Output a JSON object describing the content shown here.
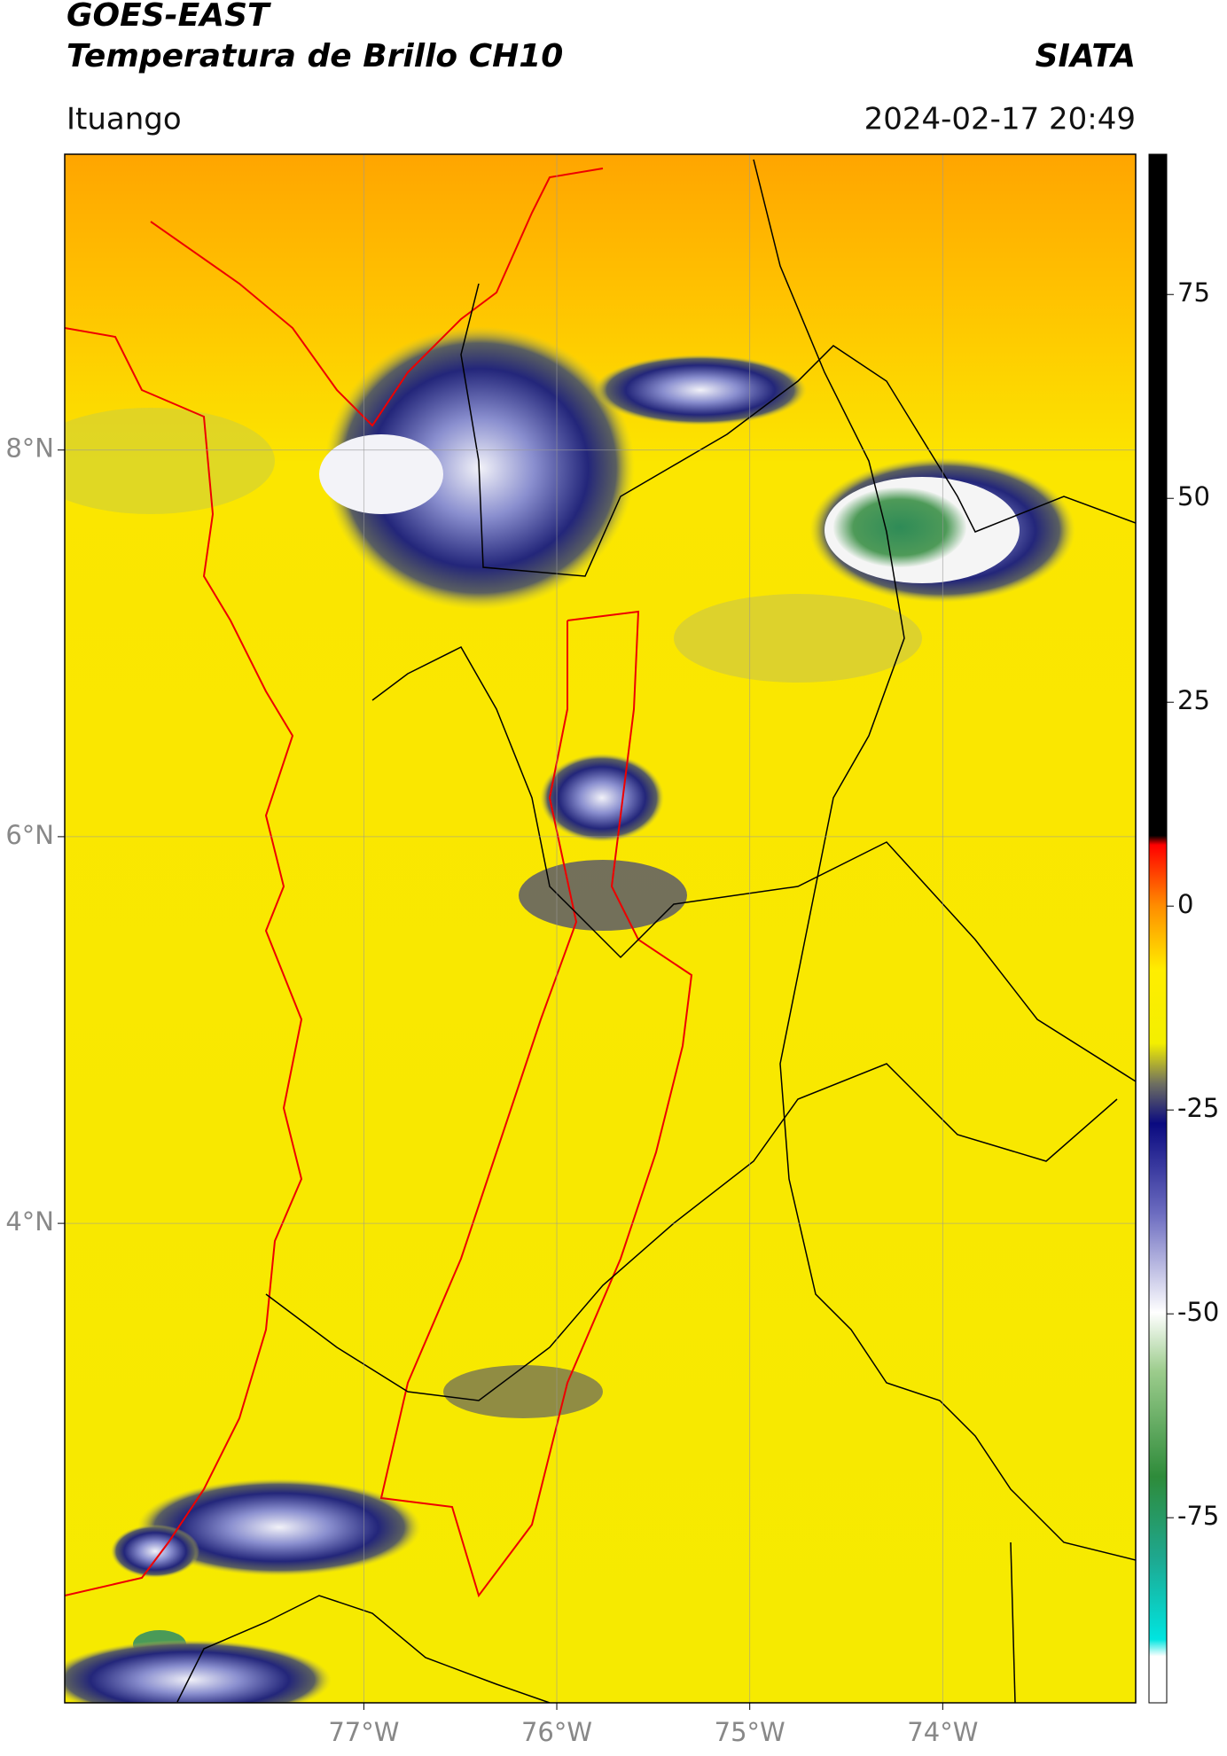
{
  "header": {
    "title": "GOES-EAST",
    "subtitle": "Temperatura de Brillo CH10",
    "source": "SIATA",
    "location": "Ituango",
    "datetime": "2024-02-17 20:49"
  },
  "map": {
    "xlim": [
      -78.55,
      -73.0
    ],
    "ylim": [
      1.52,
      9.53
    ],
    "xticks": [
      {
        "value": -77,
        "label": "77°W"
      },
      {
        "value": -76,
        "label": "76°W"
      },
      {
        "value": -75,
        "label": "75°W"
      },
      {
        "value": -74,
        "label": "74°W"
      }
    ],
    "yticks": [
      {
        "value": 4,
        "label": "4°N"
      },
      {
        "value": 6,
        "label": "6°N"
      },
      {
        "value": 8,
        "label": "8°N"
      }
    ],
    "grid": true
  },
  "colorbar": {
    "lim": [
      -97.7,
      92.2
    ],
    "ticks": [
      -75,
      -50,
      -25,
      0,
      25,
      50,
      75
    ]
  }
}
